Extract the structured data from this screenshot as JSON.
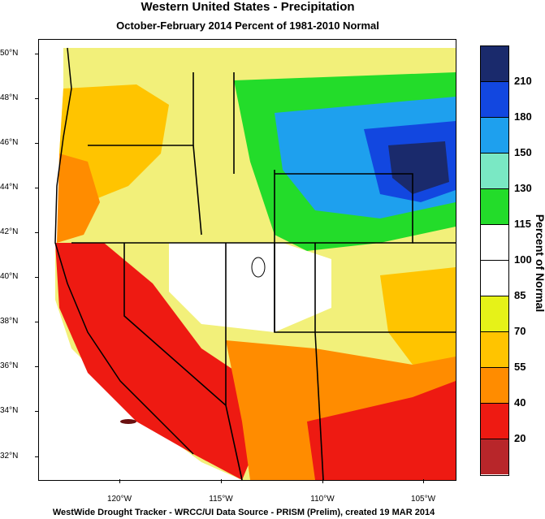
{
  "header": {
    "title": "Western United States - Precipitation",
    "subtitle": "October-February 2014  Percent of 1981-2010 Normal"
  },
  "axes": {
    "lat_labels": [
      "50°N",
      "48°N",
      "46°N",
      "44°N",
      "42°N",
      "40°N",
      "38°N",
      "36°N",
      "34°N",
      "32°N"
    ],
    "lon_labels": [
      "120°W",
      "115°W",
      "110°W",
      "105°W"
    ]
  },
  "legend": {
    "title": "Percent of Normal",
    "levels": [
      "210",
      "180",
      "150",
      "130",
      "115",
      "100",
      "85",
      "70",
      "55",
      "40",
      "20"
    ],
    "colors": [
      "#1a2a6c",
      "#1247e0",
      "#1ea0ee",
      "#7ae8c4",
      "#23dc2a",
      "#ffffff",
      "#ffffff",
      "#e6f218",
      "#ffc400",
      "#ff8c00",
      "#ee1a12",
      "#b8262a"
    ]
  },
  "footer": {
    "credit": "WestWide Drought Tracker - WRCC/UI  Data Source - PRISM (Prelim), created 19 MAR 2014"
  }
}
